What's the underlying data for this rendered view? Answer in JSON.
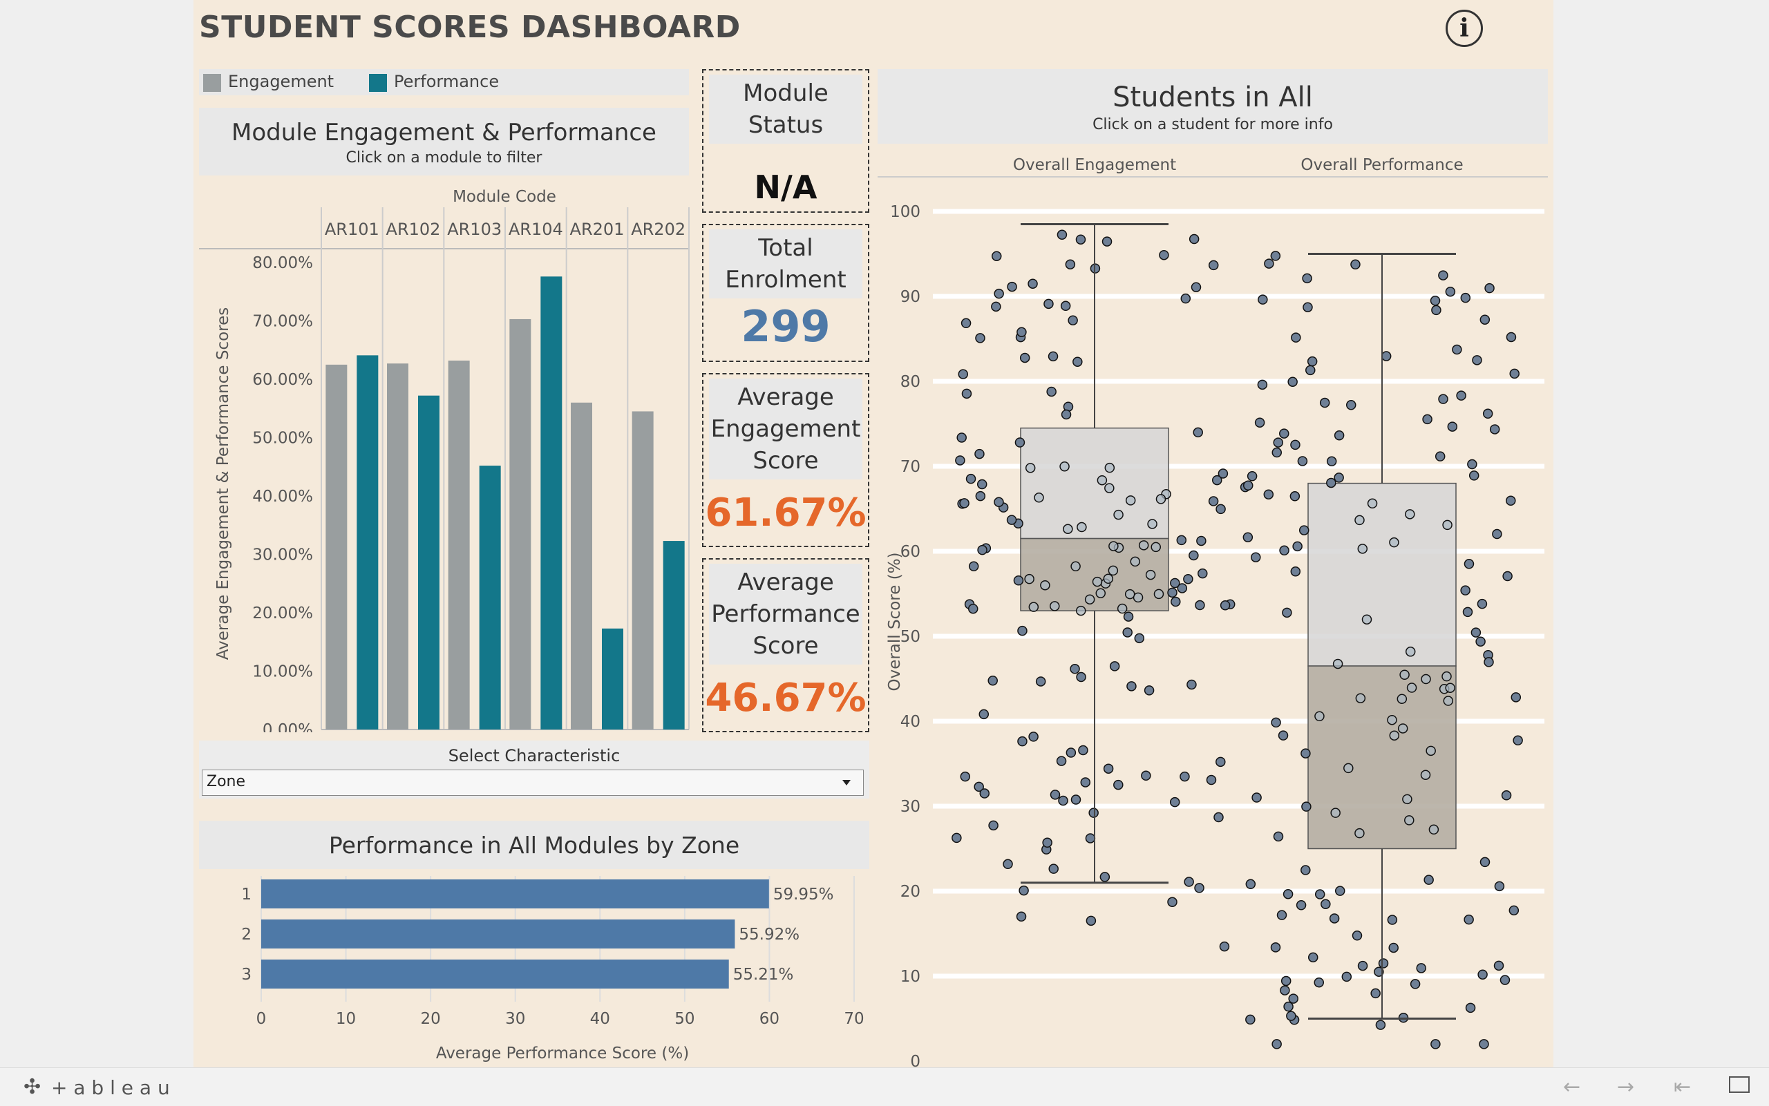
{
  "dashboard": {
    "title": "STUDENT SCORES DASHBOARD",
    "info_icon": "info-icon",
    "legend": [
      {
        "label": "Engagement",
        "color": "#999e9f"
      },
      {
        "label": "Performance",
        "color": "#13778a"
      }
    ]
  },
  "module_chart": {
    "title": "Module Engagement & Performance",
    "subtitle": "Click on a module to filter",
    "header": "Module Code",
    "ylabel": "Average Engagement & Performance Scores",
    "yticks": [
      "80.00%",
      "70.00%",
      "60.00%",
      "50.00%",
      "40.00%",
      "30.00%",
      "20.00%",
      "10.00%",
      "0.00%"
    ]
  },
  "kpis": {
    "module_status_label": "Module Status",
    "module_status_value": "N/A",
    "total_enrolment_label": "Total Enrolment",
    "total_enrolment_value": "299",
    "avg_engagement_label": "Average Engagement Score",
    "avg_engagement_value": "61.67%",
    "avg_performance_label": "Average Performance Score",
    "avg_performance_value": "46.67%"
  },
  "filter": {
    "label": "Select Characteristic",
    "selected": "Zone",
    "arrow_icon": "dropdown-arrow-icon"
  },
  "zone_chart": {
    "title": "Performance in All Modules by Zone",
    "xlabel": "Average Performance Score (%)"
  },
  "students_chart": {
    "title": "Students in All",
    "subtitle": "Click on a student for more info",
    "columns": [
      "Overall Engagement",
      "Overall Performance"
    ],
    "ylabel": "Overall Score (%)"
  },
  "footer": {
    "brand": "+ a b l e a u",
    "icons": [
      "tableau-logo-icon",
      "back-arrow-icon",
      "forward-arrow-icon",
      "reset-icon",
      "fullscreen-icon"
    ]
  },
  "chart_data": [
    {
      "type": "bar",
      "categories": [
        "AR101",
        "AR102",
        "AR103",
        "AR104",
        "AR201",
        "AR202"
      ],
      "series": [
        {
          "name": "Engagement",
          "values": [
            62.5,
            62.7,
            63.2,
            70.3,
            56.0,
            54.5
          ]
        },
        {
          "name": "Performance",
          "values": [
            64.1,
            57.2,
            45.2,
            77.6,
            17.3,
            32.3
          ]
        }
      ],
      "ylim": [
        0,
        80
      ],
      "ylabel": "Average Engagement & Performance Scores",
      "xlabel": "Module Code",
      "legend": "top-left"
    },
    {
      "type": "bar",
      "orientation": "horizontal",
      "categories": [
        "1",
        "2",
        "3"
      ],
      "values": [
        59.95,
        55.92,
        55.21
      ],
      "labels": [
        "59.95%",
        "55.92%",
        "55.21%"
      ],
      "xlim": [
        0,
        70
      ],
      "xticks": [
        0,
        10,
        20,
        30,
        40,
        50,
        60,
        70
      ],
      "xlabel": "Average Performance Score (%)",
      "color": "#4e79a7"
    },
    {
      "type": "box",
      "categories": [
        "Overall Engagement",
        "Overall Performance"
      ],
      "ylim": [
        0,
        100
      ],
      "yticks": [
        0,
        10,
        20,
        30,
        40,
        50,
        60,
        70,
        80,
        90,
        100
      ],
      "ylabel": "Overall Score (%)",
      "boxes": [
        {
          "name": "Overall Engagement",
          "whisker_low": 21,
          "q1": 53,
          "median": 61.5,
          "q3": 74.5,
          "whisker_high": 98.5
        },
        {
          "name": "Overall Performance",
          "whisker_low": 5,
          "q1": 25,
          "median": 46.5,
          "q3": 68,
          "whisker_high": 95
        }
      ],
      "point_count": 299
    }
  ]
}
